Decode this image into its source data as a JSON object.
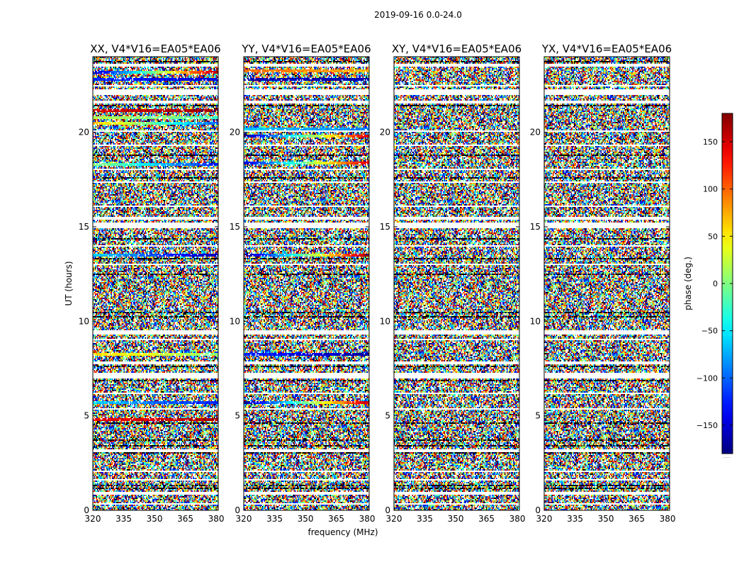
{
  "figure": {
    "suptitle": "2019-09-16 0.0-24.0",
    "colors": {
      "background": "#ffffff",
      "flagged": "#ffffff",
      "frame": "#000000"
    }
  },
  "chart_data": {
    "type": "heatmap",
    "title": "2019-09-16 0.0-24.0",
    "xlabel": "frequency (MHz)",
    "ylabel": "UT (hours)",
    "xlim": [
      320,
      381
    ],
    "ylim": [
      0,
      24
    ],
    "xticks": [
      320,
      335,
      350,
      365,
      380
    ],
    "yticks": [
      0,
      5,
      10,
      15,
      20
    ],
    "panels": [
      {
        "title": "XX, V4*V16=EA05*EA06",
        "correlation": "XX",
        "coherent_bands": [
          {
            "ut": [
              23.1,
              23.25
            ],
            "phase_start": -160,
            "phase_end": 165
          },
          {
            "ut": [
              22.7,
              22.85
            ],
            "phase_start": -120,
            "phase_end": -150
          },
          {
            "ut": [
              21.1,
              21.25
            ],
            "phase_start": 150,
            "phase_end": 170
          },
          {
            "ut": [
              20.7,
              20.85
            ],
            "phase_start": 20,
            "phase_end": -20
          },
          {
            "ut": [
              20.4,
              20.55
            ],
            "phase_start": 70,
            "phase_end": -100
          },
          {
            "ut": [
              18.2,
              18.35
            ],
            "phase_start": 10,
            "phase_end": -130
          },
          {
            "ut": [
              13.4,
              13.6
            ],
            "phase_start": -60,
            "phase_end": -160
          },
          {
            "ut": [
              8.2,
              8.35
            ],
            "phase_start": 60,
            "phase_end": 5
          },
          {
            "ut": [
              5.6,
              5.75
            ],
            "phase_start": -60,
            "phase_end": -130
          },
          {
            "ut": [
              4.75,
              4.9
            ],
            "phase_start": 140,
            "phase_end": 165
          }
        ]
      },
      {
        "title": "YY, V4*V16=EA05*EA06",
        "correlation": "YY",
        "coherent_bands": [
          {
            "ut": [
              23.2,
              23.35
            ],
            "phase_start": 100,
            "phase_end": 70
          },
          {
            "ut": [
              22.7,
              22.85
            ],
            "phase_start": -165,
            "phase_end": -160
          },
          {
            "ut": [
              20.1,
              20.25
            ],
            "phase_start": -60,
            "phase_end": -90
          },
          {
            "ut": [
              19.7,
              19.85
            ],
            "phase_start": -170,
            "phase_end": 150
          },
          {
            "ut": [
              18.3,
              18.45
            ],
            "phase_start": -150,
            "phase_end": 150
          },
          {
            "ut": [
              13.4,
              13.6
            ],
            "phase_start": -175,
            "phase_end": 175
          },
          {
            "ut": [
              8.2,
              8.35
            ],
            "phase_start": -120,
            "phase_end": -170
          },
          {
            "ut": [
              5.6,
              5.75
            ],
            "phase_start": -170,
            "phase_end": 160
          }
        ]
      },
      {
        "title": "XY, V4*V16=EA05*EA06",
        "correlation": "XY",
        "coherent_bands": []
      },
      {
        "title": "YX, V4*V16=EA05*EA06",
        "correlation": "YX",
        "coherent_bands": []
      }
    ],
    "flagged_ut_rows": [
      [
        23.5,
        23.62
      ],
      [
        22.4,
        22.52
      ],
      [
        21.95,
        22.25
      ],
      [
        21.55,
        21.65
      ],
      [
        20.0,
        20.08
      ],
      [
        19.3,
        19.38
      ],
      [
        18.0,
        18.1
      ],
      [
        17.3,
        17.42
      ],
      [
        16.05,
        16.15
      ],
      [
        15.4,
        15.5
      ],
      [
        14.95,
        15.2
      ],
      [
        13.95,
        14.05
      ],
      [
        12.95,
        13.05
      ],
      [
        9.3,
        9.55
      ],
      [
        9.0,
        9.08
      ],
      [
        7.75,
        7.85
      ],
      [
        7.0,
        7.25
      ],
      [
        6.15,
        6.25
      ],
      [
        5.3,
        5.4
      ],
      [
        3.1,
        3.22
      ],
      [
        2.0,
        2.1
      ],
      [
        1.55,
        1.65
      ],
      [
        0.85,
        0.95
      ],
      [
        0.3,
        0.4
      ]
    ],
    "dark_ut_rows": [
      [
        23.7,
        23.8
      ],
      [
        22.0,
        22.06
      ],
      [
        21.35,
        21.42
      ],
      [
        18.75,
        18.85
      ],
      [
        17.55,
        17.62
      ],
      [
        14.3,
        14.38
      ],
      [
        13.25,
        13.32
      ],
      [
        12.45,
        12.52
      ],
      [
        10.45,
        10.52
      ],
      [
        10.2,
        10.27
      ],
      [
        7.55,
        7.65
      ],
      [
        6.85,
        6.92
      ],
      [
        4.55,
        4.62
      ],
      [
        3.7,
        3.78
      ],
      [
        3.4,
        3.47
      ],
      [
        3.0,
        3.08
      ],
      [
        1.3,
        1.38
      ],
      [
        1.1,
        1.17
      ]
    ],
    "colorbar": {
      "label": "phase (deg.)",
      "min": -180,
      "max": 180,
      "ticks": [
        150,
        100,
        50,
        0,
        -50,
        -100,
        -150
      ],
      "tick_labels": [
        "150",
        "100",
        "50",
        "0",
        "−50",
        "−100",
        "−150"
      ],
      "colormap": "jet",
      "footer_text": "....."
    }
  }
}
